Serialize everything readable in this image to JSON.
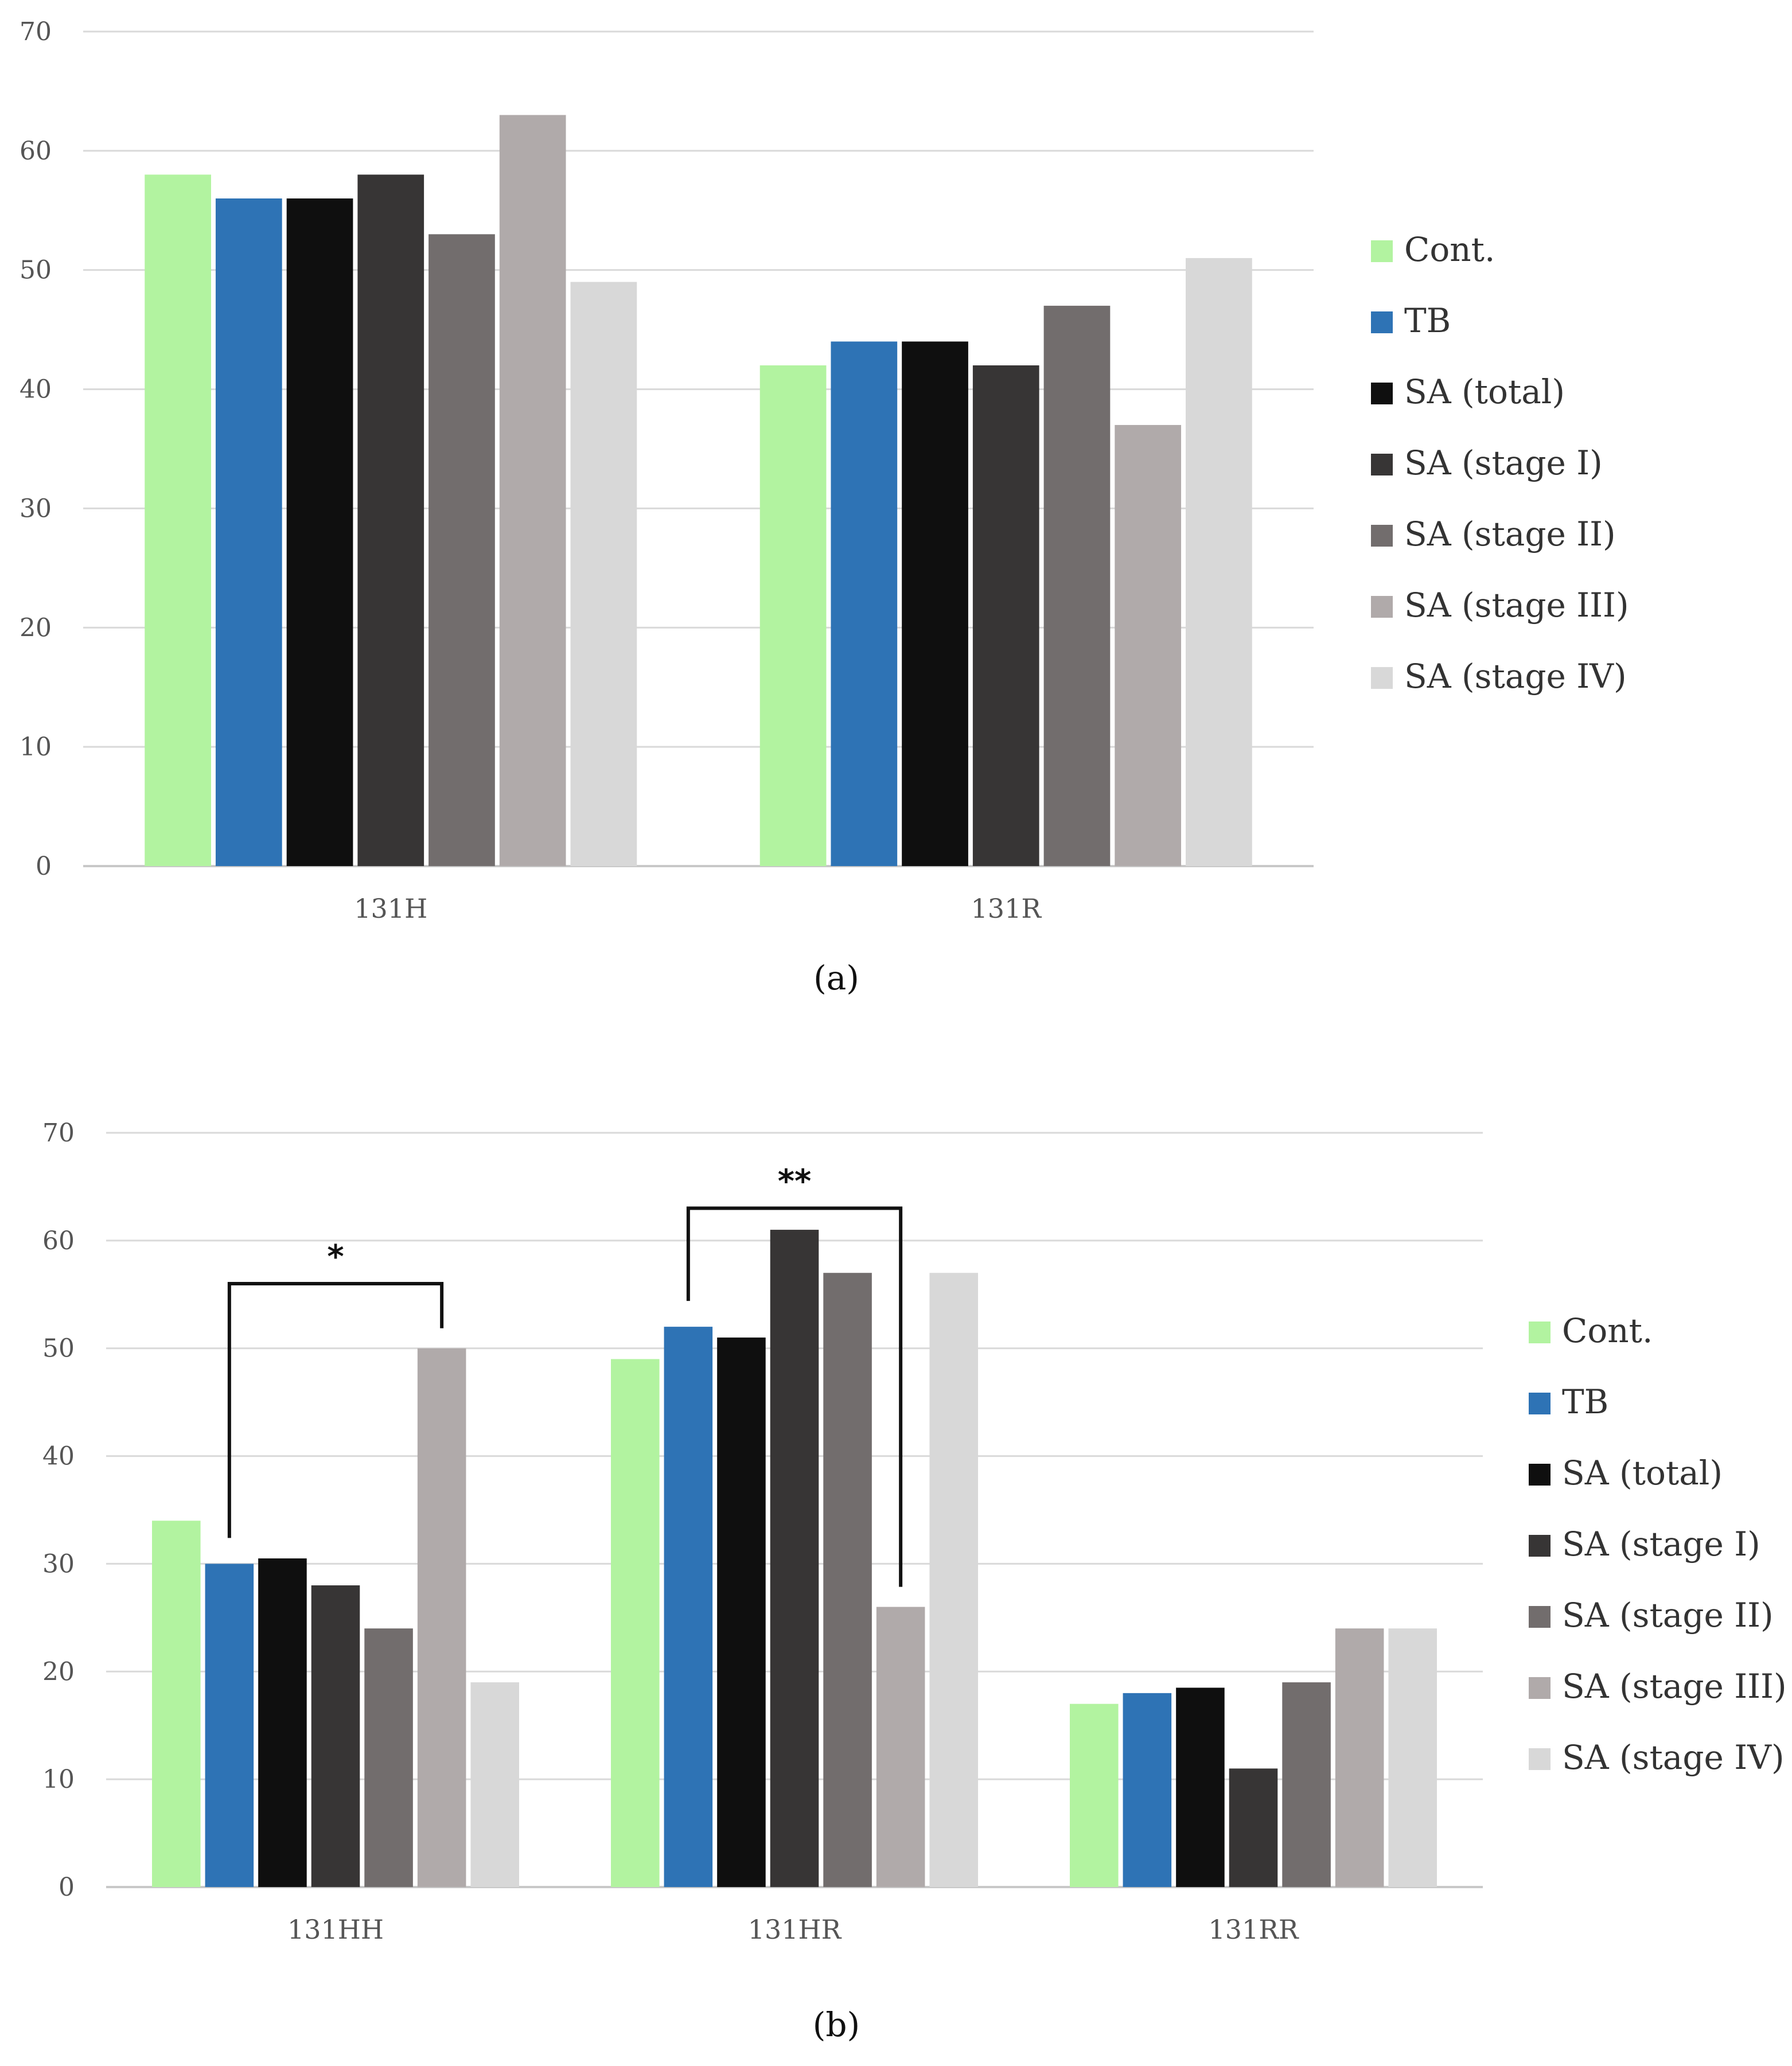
{
  "colors": {
    "Cont.": "#b2f3a0",
    "TB": "#2e73b5",
    "SA (total)": "#0f0f0f",
    "SA (stage I)": "#373535",
    "SA (stage II)": "#726d6d",
    "SA (stage III)": "#b0aaaa",
    "SA (stage IV)": "#d8d8d8"
  },
  "chart_data": [
    {
      "type": "bar",
      "caption": "(a)",
      "categories": [
        "131H",
        "131R"
      ],
      "series": [
        {
          "name": "Cont.",
          "values": [
            58,
            42
          ]
        },
        {
          "name": "TB",
          "values": [
            56,
            44
          ]
        },
        {
          "name": "SA (total)",
          "values": [
            56,
            44
          ]
        },
        {
          "name": "SA (stage I)",
          "values": [
            58,
            42
          ]
        },
        {
          "name": "SA (stage II)",
          "values": [
            53,
            47
          ]
        },
        {
          "name": "SA (stage III)",
          "values": [
            63,
            37
          ]
        },
        {
          "name": "SA (stage IV)",
          "values": [
            49,
            51
          ]
        }
      ],
      "ylim": [
        0,
        70
      ],
      "yticks": [
        0,
        10,
        20,
        30,
        40,
        50,
        60,
        70
      ],
      "grid": true,
      "legend": "right",
      "annotations": []
    },
    {
      "type": "bar",
      "caption": "(b)",
      "categories": [
        "131HH",
        "131HR",
        "131RR"
      ],
      "series": [
        {
          "name": "Cont.",
          "values": [
            34,
            49,
            17
          ]
        },
        {
          "name": "TB",
          "values": [
            30,
            52,
            18
          ]
        },
        {
          "name": "SA (total)",
          "values": [
            30.5,
            51,
            18.5
          ]
        },
        {
          "name": "SA (stage I)",
          "values": [
            28,
            61,
            11
          ]
        },
        {
          "name": "SA (stage II)",
          "values": [
            24,
            57,
            19
          ]
        },
        {
          "name": "SA (stage III)",
          "values": [
            50,
            26,
            24
          ]
        },
        {
          "name": "SA (stage IV)",
          "values": [
            19,
            57,
            24
          ]
        }
      ],
      "ylim": [
        0,
        70
      ],
      "yticks": [
        0,
        10,
        20,
        30,
        40,
        50,
        60,
        70
      ],
      "grid": true,
      "legend": "right",
      "annotations": [
        {
          "label": "*",
          "category": "131HH",
          "from_series": "TB",
          "to_series": "SA (stage III)",
          "level": 56
        },
        {
          "label": "**",
          "category": "131HR",
          "from_series": "TB",
          "to_series": "SA (stage III)",
          "level": 63
        }
      ]
    }
  ]
}
